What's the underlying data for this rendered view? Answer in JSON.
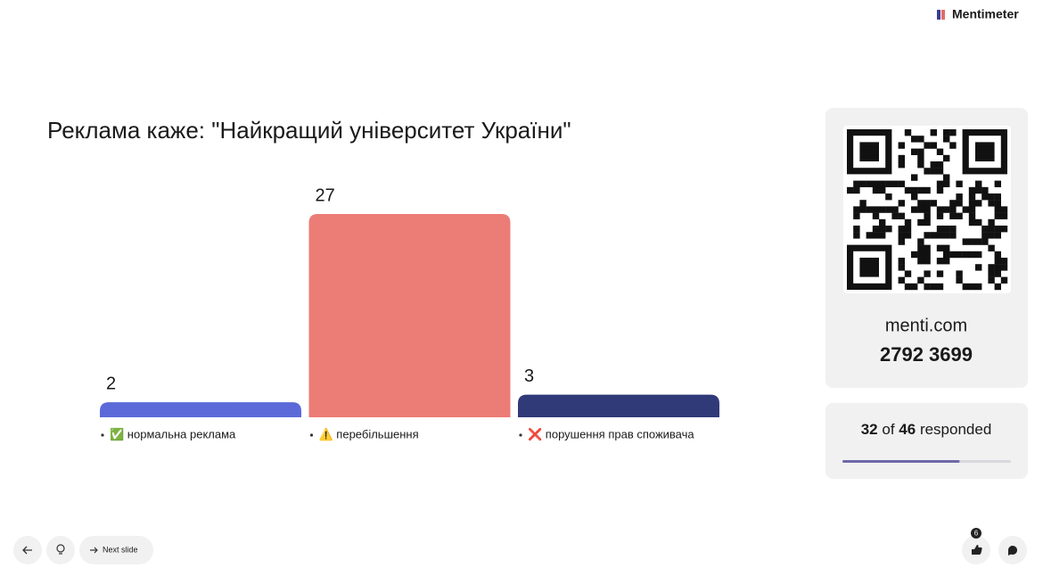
{
  "brand": "Mentimeter",
  "chart_data": {
    "type": "bar",
    "title": "Реклама каже: \"Найкращий університет України\"",
    "categories": [
      "✅ нормальна реклама",
      "⚠️ перебільшення",
      "❌ порушення прав споживача"
    ],
    "values": [
      2,
      27,
      3
    ],
    "colors": [
      "#5b6ad8",
      "#ec7c76",
      "#313a78"
    ],
    "ylim": [
      0,
      27
    ]
  },
  "join": {
    "site": "menti.com",
    "code": "2792 3699"
  },
  "responses": {
    "count": 32,
    "of": "of",
    "total": 46,
    "suffix": "responded"
  },
  "controls": {
    "next": "Next slide",
    "reactions": 6
  }
}
